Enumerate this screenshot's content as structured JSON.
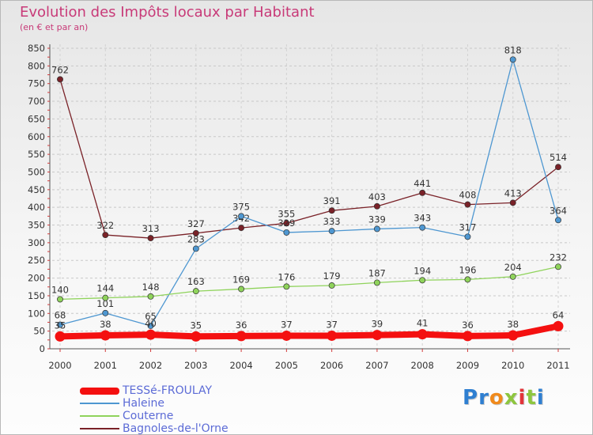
{
  "title": "Evolution des Impôts locaux par Habitant",
  "subtitle": "(en € et par an)",
  "logo": {
    "text": "Proxiti",
    "letter_colors": [
      "#2f7fd1",
      "#2f7fd1",
      "#f08a1c",
      "#8dc63f",
      "#e2343a",
      "#8dc63f",
      "#2f7fd1"
    ]
  },
  "chart_data": {
    "type": "line",
    "title": "Evolution des Impôts locaux par Habitant",
    "subtitle": "(en € et par an)",
    "xlabel": "",
    "ylabel": "",
    "x": [
      "2000",
      "2001",
      "2002",
      "2003",
      "2004",
      "2005",
      "2006",
      "2007",
      "2008",
      "2009",
      "2010",
      "2011"
    ],
    "ylim": [
      0,
      850
    ],
    "yticks": [
      "0",
      "50",
      "100",
      "150",
      "200",
      "250",
      "300",
      "350",
      "400",
      "450",
      "500",
      "550",
      "600",
      "650",
      "700",
      "750",
      "800",
      "850"
    ],
    "grid": "horizontal dashed",
    "legend_position": "bottom-left",
    "series": [
      {
        "name": "Bagnoles-de-l'Orne",
        "color": "#7a2228",
        "values": [
          762,
          322,
          313,
          327,
          342,
          355,
          391,
          403,
          441,
          408,
          413,
          514
        ],
        "labels": [
          "762",
          "322",
          "313",
          "327",
          "342",
          "355",
          "391",
          "403",
          "441",
          "408",
          "413",
          "514"
        ]
      },
      {
        "name": "Haleine",
        "color": "#4e97d1",
        "values": [
          68,
          101,
          65,
          283,
          375,
          329,
          333,
          339,
          343,
          317,
          818,
          364
        ],
        "labels": [
          "68",
          "101",
          "65",
          "283",
          "375",
          "329",
          "333",
          "339",
          "343",
          "317",
          "818",
          "364"
        ]
      },
      {
        "name": "Couterne",
        "color": "#8fd35b",
        "values": [
          140,
          144,
          148,
          163,
          169,
          176,
          179,
          187,
          194,
          196,
          204,
          232
        ],
        "labels": [
          "140",
          "144",
          "148",
          "163",
          "169",
          "176",
          "179",
          "187",
          "194",
          "196",
          "204",
          "232"
        ]
      },
      {
        "name": "TESSé-FROULAY",
        "color": "#f41010",
        "values": [
          35,
          38,
          40,
          35,
          36,
          37,
          37,
          39,
          41,
          36,
          38,
          64
        ],
        "labels": [
          "35",
          "38",
          "40",
          "35",
          "36",
          "37",
          "37",
          "39",
          "41",
          "36",
          "38",
          "64"
        ]
      }
    ],
    "legend": [
      {
        "name": "TESSé-FROULAY",
        "color": "#f41010"
      },
      {
        "name": "Haleine",
        "color": "#4e97d1"
      },
      {
        "name": "Couterne",
        "color": "#8fd35b"
      },
      {
        "name": "Bagnoles-de-l'Orne",
        "color": "#7a2228"
      }
    ]
  }
}
